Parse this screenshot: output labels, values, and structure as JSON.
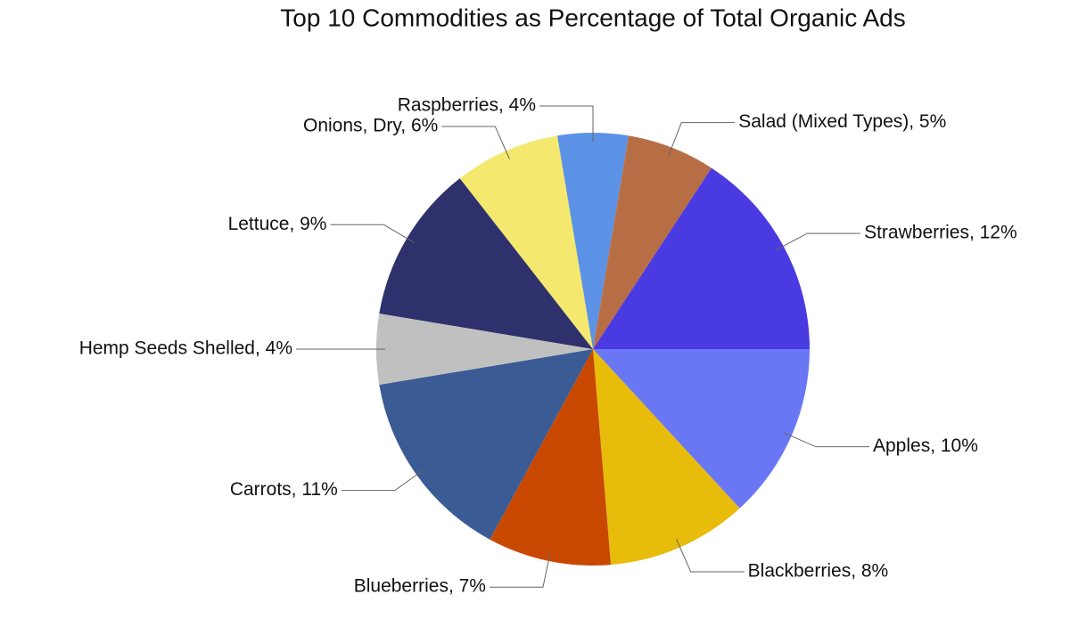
{
  "chart_data": {
    "type": "pie",
    "title": "Top 10 Commodities as Percentage of Total Organic Ads",
    "values": [
      10,
      8,
      7,
      11,
      4,
      9,
      6,
      4,
      5,
      12
    ],
    "value_labels": [
      "Apples, 10%",
      "Blackberries, 8%",
      "Blueberries, 7%",
      "Carrots, 11%",
      "Hemp Seeds Shelled, 4%",
      "Lettuce, 9%",
      "Onions, Dry, 6%",
      "Raspberries, 4%",
      "Salad (Mixed Types), 5%",
      "Strawberries, 12%"
    ],
    "colors": [
      "#6a77f5",
      "#e8bc0a",
      "#c94800",
      "#3a5b94",
      "#c0c0c0",
      "#2e316b",
      "#f4e86e",
      "#5b92e5",
      "#b86e45",
      "#4a3ae2"
    ]
  }
}
